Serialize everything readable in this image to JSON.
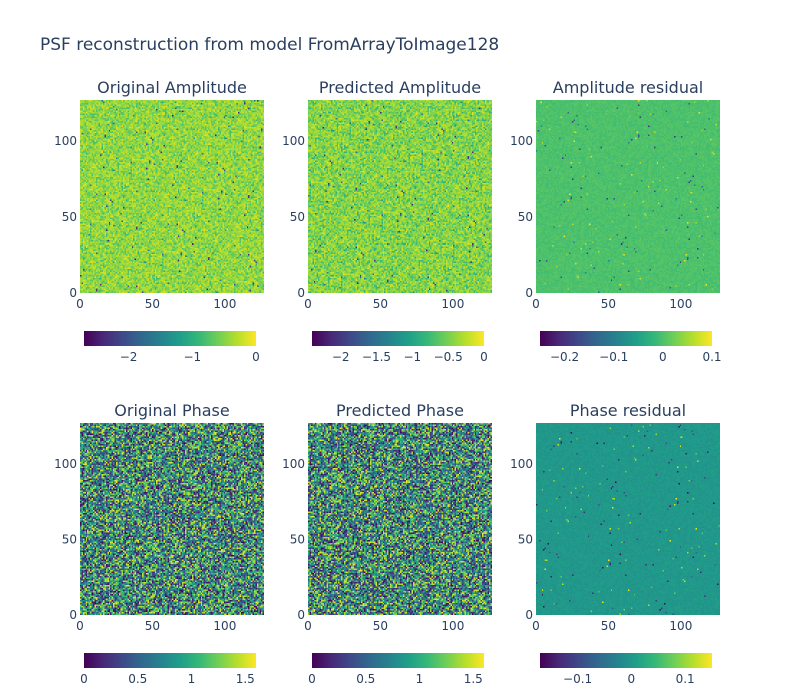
{
  "title": "PSF reconstruction from model FromArrayToImage128",
  "chart_data": [
    {
      "type": "heatmap",
      "title": "Original Amplitude",
      "grid_size": 128,
      "xlim": [
        0,
        127
      ],
      "ylim": [
        0,
        127
      ],
      "xticks": [
        0,
        50,
        100
      ],
      "yticks": [
        0,
        50,
        100
      ],
      "colorscale": "viridis",
      "zrange": [
        -2.7,
        0
      ],
      "colorbar_ticks": [
        -2,
        -1,
        0
      ],
      "colorbar_tick_labels": [
        "−2",
        "−1",
        "0"
      ],
      "pattern": "noise",
      "value_distribution": {
        "typical": -0.35,
        "spread": 0.45,
        "lows": -2.6
      }
    },
    {
      "type": "heatmap",
      "title": "Predicted Amplitude",
      "grid_size": 128,
      "xlim": [
        0,
        127
      ],
      "ylim": [
        0,
        127
      ],
      "xticks": [
        0,
        50,
        100
      ],
      "yticks": [
        0,
        50,
        100
      ],
      "colorscale": "viridis",
      "zrange": [
        -2.4,
        0
      ],
      "colorbar_ticks": [
        -2,
        -1.5,
        -1,
        -0.5,
        0
      ],
      "colorbar_tick_labels": [
        "−2",
        "−1.5",
        "−1",
        "−0.5",
        "0"
      ],
      "pattern": "noise",
      "value_distribution": {
        "typical": -0.35,
        "spread": 0.45,
        "lows": -2.3
      }
    },
    {
      "type": "heatmap",
      "title": "Amplitude residual",
      "grid_size": 128,
      "xlim": [
        0,
        127
      ],
      "ylim": [
        0,
        127
      ],
      "xticks": [
        0,
        50,
        100
      ],
      "yticks": [
        0,
        50,
        100
      ],
      "colorscale": "viridis",
      "zrange": [
        -0.25,
        0.1
      ],
      "colorbar_ticks": [
        -0.2,
        -0.1,
        0,
        0.1
      ],
      "colorbar_tick_labels": [
        "−0.2",
        "−0.1",
        "0",
        "0.1"
      ],
      "pattern": "near-zero residual",
      "value_distribution": {
        "typical": 0,
        "spread": 0.01,
        "outliers": [
          -0.2,
          0.1
        ]
      }
    },
    {
      "type": "heatmap",
      "title": "Original Phase",
      "grid_size": 128,
      "xlim": [
        0,
        127
      ],
      "ylim": [
        0,
        127
      ],
      "xticks": [
        0,
        50,
        100
      ],
      "yticks": [
        0,
        50,
        100
      ],
      "colorscale": "viridis",
      "zrange": [
        0,
        1.6
      ],
      "colorbar_ticks": [
        0,
        0.5,
        1,
        1.5
      ],
      "colorbar_tick_labels": [
        "0",
        "0.5",
        "1",
        "1.5"
      ],
      "pattern": "uniform noise",
      "value_distribution": {
        "min": 0,
        "max": 1.57
      }
    },
    {
      "type": "heatmap",
      "title": "Predicted Phase",
      "grid_size": 128,
      "xlim": [
        0,
        127
      ],
      "ylim": [
        0,
        127
      ],
      "xticks": [
        0,
        50,
        100
      ],
      "yticks": [
        0,
        50,
        100
      ],
      "colorscale": "viridis",
      "zrange": [
        0,
        1.6
      ],
      "colorbar_ticks": [
        0,
        0.5,
        1,
        1.5
      ],
      "colorbar_tick_labels": [
        "0",
        "0.5",
        "1",
        "1.5"
      ],
      "pattern": "uniform noise",
      "value_distribution": {
        "min": 0,
        "max": 1.57
      }
    },
    {
      "type": "heatmap",
      "title": "Phase residual",
      "grid_size": 128,
      "xlim": [
        0,
        127
      ],
      "ylim": [
        0,
        127
      ],
      "xticks": [
        0,
        50,
        100
      ],
      "yticks": [
        0,
        50,
        100
      ],
      "colorscale": "viridis",
      "zrange": [
        -0.17,
        0.15
      ],
      "colorbar_ticks": [
        -0.1,
        0,
        0.1
      ],
      "colorbar_tick_labels": [
        "−0.1",
        "0",
        "0.1"
      ],
      "pattern": "near-zero residual",
      "value_distribution": {
        "typical": 0,
        "spread": 0.01,
        "outliers": [
          -0.17,
          0.15
        ]
      }
    }
  ],
  "colors": {
    "text": "#2a3f5f",
    "background": "#ffffff",
    "viridis_stops": [
      "#440154",
      "#482878",
      "#3e4989",
      "#31688e",
      "#26828e",
      "#1f9e89",
      "#35b779",
      "#6ece58",
      "#b5de2b",
      "#fde725"
    ]
  }
}
